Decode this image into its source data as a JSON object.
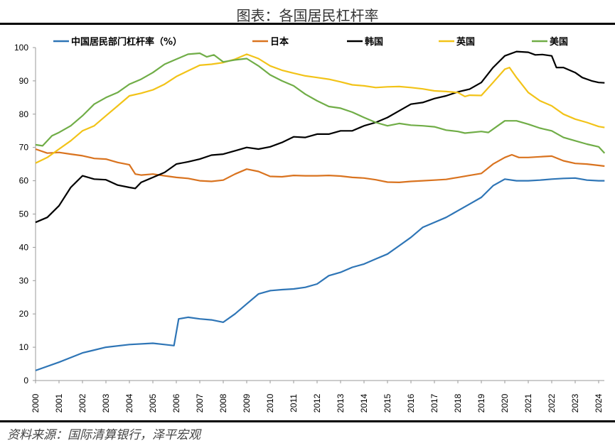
{
  "title": "图表：各国居民杠杆率",
  "source": "资料来源：国际清算银行，泽平宏观",
  "chart_data": {
    "type": "line",
    "title": "图表：各国居民杠杆率",
    "xlabel": "",
    "ylabel": "",
    "xlim": [
      2000,
      2024.3
    ],
    "ylim": [
      0,
      100
    ],
    "x_ticks": [
      "2000",
      "2001",
      "2002",
      "2003",
      "2004",
      "2005",
      "2006",
      "2007",
      "2008",
      "2009",
      "2010",
      "2011",
      "2012",
      "2013",
      "2014",
      "2015",
      "2016",
      "2017",
      "2018",
      "2019",
      "2020",
      "2021",
      "2022",
      "2023",
      "2024"
    ],
    "y_ticks": [
      "0",
      "10",
      "20",
      "30",
      "40",
      "50",
      "60",
      "70",
      "80",
      "90",
      "100"
    ],
    "grid": false,
    "legend": "top",
    "series": [
      {
        "name": "中国居民部门杠杆率（%）",
        "color": "#2e75b6",
        "points": [
          [
            2000,
            3
          ],
          [
            2001,
            5.5
          ],
          [
            2002,
            8.3
          ],
          [
            2003,
            10
          ],
          [
            2004,
            10.8
          ],
          [
            2005,
            11.2
          ],
          [
            2005.5,
            10.8
          ],
          [
            2005.9,
            10.5
          ],
          [
            2006.1,
            18.5
          ],
          [
            2006.5,
            19
          ],
          [
            2007,
            18.5
          ],
          [
            2007.5,
            18.2
          ],
          [
            2008,
            17.5
          ],
          [
            2008.5,
            20
          ],
          [
            2009,
            23
          ],
          [
            2009.5,
            26
          ],
          [
            2010,
            27
          ],
          [
            2010.5,
            27.3
          ],
          [
            2011,
            27.5
          ],
          [
            2011.5,
            28
          ],
          [
            2012,
            29
          ],
          [
            2012.5,
            31.5
          ],
          [
            2013,
            32.5
          ],
          [
            2013.5,
            34
          ],
          [
            2014,
            35
          ],
          [
            2014.5,
            36.5
          ],
          [
            2015,
            38
          ],
          [
            2015.5,
            40.5
          ],
          [
            2016,
            43
          ],
          [
            2016.5,
            46
          ],
          [
            2017,
            47.5
          ],
          [
            2017.5,
            49
          ],
          [
            2018,
            51
          ],
          [
            2018.5,
            53
          ],
          [
            2019,
            55
          ],
          [
            2019.5,
            58.5
          ],
          [
            2020,
            60.5
          ],
          [
            2020.5,
            60
          ],
          [
            2021,
            60
          ],
          [
            2021.5,
            60.2
          ],
          [
            2022,
            60.5
          ],
          [
            2022.5,
            60.7
          ],
          [
            2023,
            60.8
          ],
          [
            2023.5,
            60.2
          ],
          [
            2024,
            60
          ],
          [
            2024.25,
            60
          ]
        ]
      },
      {
        "name": "日本",
        "color": "#d9731f",
        "points": [
          [
            2000,
            69.5
          ],
          [
            2000.5,
            68.3
          ],
          [
            2001,
            68.5
          ],
          [
            2001.5,
            68
          ],
          [
            2002,
            67.5
          ],
          [
            2002.5,
            66.7
          ],
          [
            2003,
            66.5
          ],
          [
            2003.5,
            65.5
          ],
          [
            2004,
            64.8
          ],
          [
            2004.25,
            62
          ],
          [
            2004.5,
            61.7
          ],
          [
            2005,
            62
          ],
          [
            2005.5,
            61.5
          ],
          [
            2006,
            61
          ],
          [
            2006.5,
            60.7
          ],
          [
            2007,
            60
          ],
          [
            2007.5,
            59.8
          ],
          [
            2008,
            60.2
          ],
          [
            2008.5,
            62
          ],
          [
            2009,
            63.5
          ],
          [
            2009.5,
            62.8
          ],
          [
            2010,
            61.3
          ],
          [
            2010.5,
            61.2
          ],
          [
            2011,
            61.6
          ],
          [
            2011.5,
            61.5
          ],
          [
            2012,
            61.5
          ],
          [
            2012.5,
            61.6
          ],
          [
            2013,
            61.4
          ],
          [
            2013.5,
            61
          ],
          [
            2014,
            60.8
          ],
          [
            2014.5,
            60.3
          ],
          [
            2015,
            59.6
          ],
          [
            2015.5,
            59.5
          ],
          [
            2016,
            59.8
          ],
          [
            2016.5,
            60
          ],
          [
            2017,
            60.2
          ],
          [
            2017.5,
            60.4
          ],
          [
            2018,
            61
          ],
          [
            2018.5,
            61.6
          ],
          [
            2019,
            62.2
          ],
          [
            2019.5,
            65
          ],
          [
            2020,
            67
          ],
          [
            2020.3,
            67.8
          ],
          [
            2020.6,
            67
          ],
          [
            2021,
            67
          ],
          [
            2021.5,
            67.2
          ],
          [
            2022,
            67.4
          ],
          [
            2022.5,
            66
          ],
          [
            2023,
            65.2
          ],
          [
            2023.5,
            65
          ],
          [
            2024,
            64.6
          ],
          [
            2024.25,
            64.4
          ]
        ]
      },
      {
        "name": "韩国",
        "color": "#000000",
        "points": [
          [
            2000,
            47.5
          ],
          [
            2000.5,
            49
          ],
          [
            2001,
            52.5
          ],
          [
            2001.5,
            58
          ],
          [
            2002,
            61.5
          ],
          [
            2002.5,
            60.5
          ],
          [
            2003,
            60.3
          ],
          [
            2003.5,
            58.7
          ],
          [
            2004,
            58
          ],
          [
            2004.25,
            57.7
          ],
          [
            2004.5,
            59.5
          ],
          [
            2005,
            61
          ],
          [
            2005.5,
            62.5
          ],
          [
            2006,
            65
          ],
          [
            2006.5,
            65.7
          ],
          [
            2007,
            66.5
          ],
          [
            2007.5,
            67.7
          ],
          [
            2008,
            68
          ],
          [
            2008.5,
            69
          ],
          [
            2009,
            70
          ],
          [
            2009.5,
            69.5
          ],
          [
            2010,
            70.2
          ],
          [
            2010.5,
            71.5
          ],
          [
            2011,
            73.2
          ],
          [
            2011.5,
            73
          ],
          [
            2012,
            74
          ],
          [
            2012.5,
            74
          ],
          [
            2013,
            75
          ],
          [
            2013.5,
            75
          ],
          [
            2014,
            76.5
          ],
          [
            2014.5,
            77.5
          ],
          [
            2015,
            79
          ],
          [
            2015.5,
            81
          ],
          [
            2016,
            83
          ],
          [
            2016.5,
            83.5
          ],
          [
            2017,
            84.7
          ],
          [
            2017.5,
            85.5
          ],
          [
            2018,
            86.7
          ],
          [
            2018.5,
            87.5
          ],
          [
            2019,
            89.5
          ],
          [
            2019.5,
            94
          ],
          [
            2020,
            97.5
          ],
          [
            2020.5,
            98.8
          ],
          [
            2021,
            98.6
          ],
          [
            2021.3,
            97.8
          ],
          [
            2021.6,
            97.9
          ],
          [
            2022,
            97.5
          ],
          [
            2022.2,
            94
          ],
          [
            2022.5,
            94
          ],
          [
            2023,
            92.5
          ],
          [
            2023.3,
            91
          ],
          [
            2023.7,
            90
          ],
          [
            2024,
            89.5
          ],
          [
            2024.25,
            89.4
          ]
        ]
      },
      {
        "name": "英国",
        "color": "#f2c318",
        "points": [
          [
            2000,
            65.3
          ],
          [
            2000.5,
            67
          ],
          [
            2001,
            69.5
          ],
          [
            2001.5,
            72
          ],
          [
            2002,
            75
          ],
          [
            2002.5,
            76.5
          ],
          [
            2003,
            79.5
          ],
          [
            2003.5,
            82.5
          ],
          [
            2004,
            85.5
          ],
          [
            2004.5,
            86.3
          ],
          [
            2005,
            87.3
          ],
          [
            2005.5,
            89
          ],
          [
            2006,
            91.3
          ],
          [
            2006.5,
            93
          ],
          [
            2007,
            94.7
          ],
          [
            2007.5,
            95
          ],
          [
            2008,
            95.5
          ],
          [
            2008.5,
            96.5
          ],
          [
            2009,
            98
          ],
          [
            2009.5,
            96.7
          ],
          [
            2010,
            94.5
          ],
          [
            2010.5,
            93.2
          ],
          [
            2011,
            92.3
          ],
          [
            2011.5,
            91.5
          ],
          [
            2012,
            91
          ],
          [
            2012.5,
            90.5
          ],
          [
            2013,
            89.7
          ],
          [
            2013.5,
            88.8
          ],
          [
            2014,
            88.5
          ],
          [
            2014.5,
            88
          ],
          [
            2015,
            88.2
          ],
          [
            2015.5,
            88.3
          ],
          [
            2016,
            88
          ],
          [
            2016.5,
            87.6
          ],
          [
            2017,
            87
          ],
          [
            2017.5,
            86.8
          ],
          [
            2018,
            86.5
          ],
          [
            2018.3,
            85.3
          ],
          [
            2018.5,
            85.7
          ],
          [
            2019,
            85.6
          ],
          [
            2019.5,
            89.5
          ],
          [
            2020,
            93.5
          ],
          [
            2020.2,
            94
          ],
          [
            2020.5,
            91
          ],
          [
            2021,
            86.5
          ],
          [
            2021.5,
            84
          ],
          [
            2022,
            82.5
          ],
          [
            2022.5,
            80
          ],
          [
            2023,
            78.5
          ],
          [
            2023.5,
            77.5
          ],
          [
            2024,
            76.3
          ],
          [
            2024.25,
            76
          ]
        ]
      },
      {
        "name": "美国",
        "color": "#70ad47",
        "points": [
          [
            2000,
            70.8
          ],
          [
            2000.3,
            70.5
          ],
          [
            2000.7,
            73.5
          ],
          [
            2001,
            74.5
          ],
          [
            2001.5,
            76.5
          ],
          [
            2002,
            79.5
          ],
          [
            2002.5,
            83
          ],
          [
            2003,
            85
          ],
          [
            2003.5,
            86.5
          ],
          [
            2004,
            89
          ],
          [
            2004.5,
            90.5
          ],
          [
            2005,
            92.5
          ],
          [
            2005.5,
            95
          ],
          [
            2006,
            96.5
          ],
          [
            2006.5,
            98
          ],
          [
            2007,
            98.3
          ],
          [
            2007.3,
            97.2
          ],
          [
            2007.6,
            97.8
          ],
          [
            2008,
            95.7
          ],
          [
            2008.5,
            96.3
          ],
          [
            2009,
            96.7
          ],
          [
            2009.5,
            94.5
          ],
          [
            2010,
            91.8
          ],
          [
            2010.5,
            90
          ],
          [
            2011,
            88.5
          ],
          [
            2011.5,
            86
          ],
          [
            2012,
            84
          ],
          [
            2012.5,
            82.3
          ],
          [
            2013,
            81.8
          ],
          [
            2013.5,
            80.6
          ],
          [
            2014,
            79
          ],
          [
            2014.5,
            77.5
          ],
          [
            2015,
            76.5
          ],
          [
            2015.5,
            77.2
          ],
          [
            2016,
            76.7
          ],
          [
            2016.5,
            76.5
          ],
          [
            2017,
            76.2
          ],
          [
            2017.5,
            75.2
          ],
          [
            2018,
            74.8
          ],
          [
            2018.3,
            74.3
          ],
          [
            2019,
            74.8
          ],
          [
            2019.3,
            74.5
          ],
          [
            2019.7,
            76.5
          ],
          [
            2020,
            78
          ],
          [
            2020.5,
            78
          ],
          [
            2021,
            77
          ],
          [
            2021.5,
            75.8
          ],
          [
            2022,
            75
          ],
          [
            2022.5,
            73
          ],
          [
            2023,
            72
          ],
          [
            2023.5,
            71
          ],
          [
            2024,
            70.2
          ],
          [
            2024.25,
            68.3
          ]
        ]
      }
    ]
  }
}
